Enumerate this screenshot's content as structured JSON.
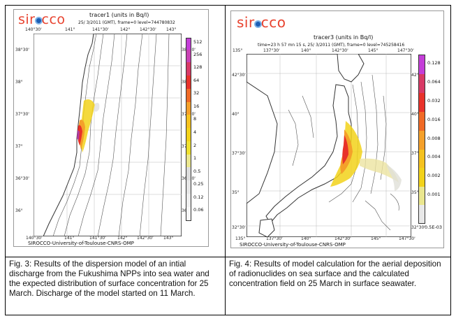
{
  "colors": {
    "logo_text": "#e8432f",
    "logo_dot": "#1d5fb5",
    "plume_hot": "#e8322a",
    "plume_mid": "#f4a02a",
    "plume_low": "#f2d21a"
  },
  "fig3": {
    "logo": "sir",
    "logo2": "cco",
    "title": "tracer1 (units in Bq/l)",
    "subtitle": "25/ 3/2011 (GMT), frame=0 level=744780832",
    "footer": "SIROCCO-University-of-Toulouse-CNRS-OMP",
    "top_ticks": [
      "140°30'",
      "141°",
      "141°30'",
      "142°",
      "142°30'",
      "143°"
    ],
    "bottom_ticks": [
      "140°30'",
      "141°",
      "141°30'",
      "142°",
      "142°30'",
      "143°"
    ],
    "left_ticks": [
      "38°30'",
      "38°",
      "37°30'",
      "37°",
      "36°30'",
      "36°"
    ],
    "right_ticks": [
      "38°30'",
      "38°",
      "37°30'",
      "37°",
      "36°30'",
      "36°"
    ],
    "colorbar": [
      "512",
      "256",
      "128",
      "64",
      "32",
      "16",
      "8",
      "4",
      "2",
      "1",
      "0.5",
      "0.25",
      "0.12",
      "0.06"
    ]
  },
  "fig4": {
    "logo": "sir",
    "logo2": "cco",
    "title": "tracer3 (units in Bq/l)",
    "subtitle": "time=23 h 57 mn 15 s, 25/ 3/2011 (GMT), frame=0 level=745258416",
    "footer": "SIROCCO-University-of-Toulouse-CNRS-OMP",
    "top_ticks": [
      "135°",
      "137°30'",
      "140°",
      "142°30'",
      "145°",
      "147°30'"
    ],
    "bottom_ticks": [
      "135°",
      "137°30'",
      "140°",
      "142°30'",
      "145°",
      "147°30'"
    ],
    "left_ticks": [
      "42°30'",
      "40°",
      "37°30'",
      "35°",
      "32°30'"
    ],
    "right_ticks": [
      "42°30'",
      "40°",
      "37°30'",
      "35°",
      "32°30'"
    ],
    "colorbar": [
      "0.128",
      "0.064",
      "0.032",
      "0.016",
      "0.008",
      "0.004",
      "0.002",
      "0.001",
      "0.5E-03"
    ]
  },
  "captions": {
    "fig3": "Fig. 3: Results of the dispersion model of an intial discharge from the Fukushima NPPs into sea water and the expected distribution of surface concentration for 25 March. Discharge of the model started on 11 March.",
    "fig4": "Fig. 4: Results of model calculation for the aerial deposition of radionuclides on sea surface and the calculated concentration field on 25 March in surface seawater."
  }
}
